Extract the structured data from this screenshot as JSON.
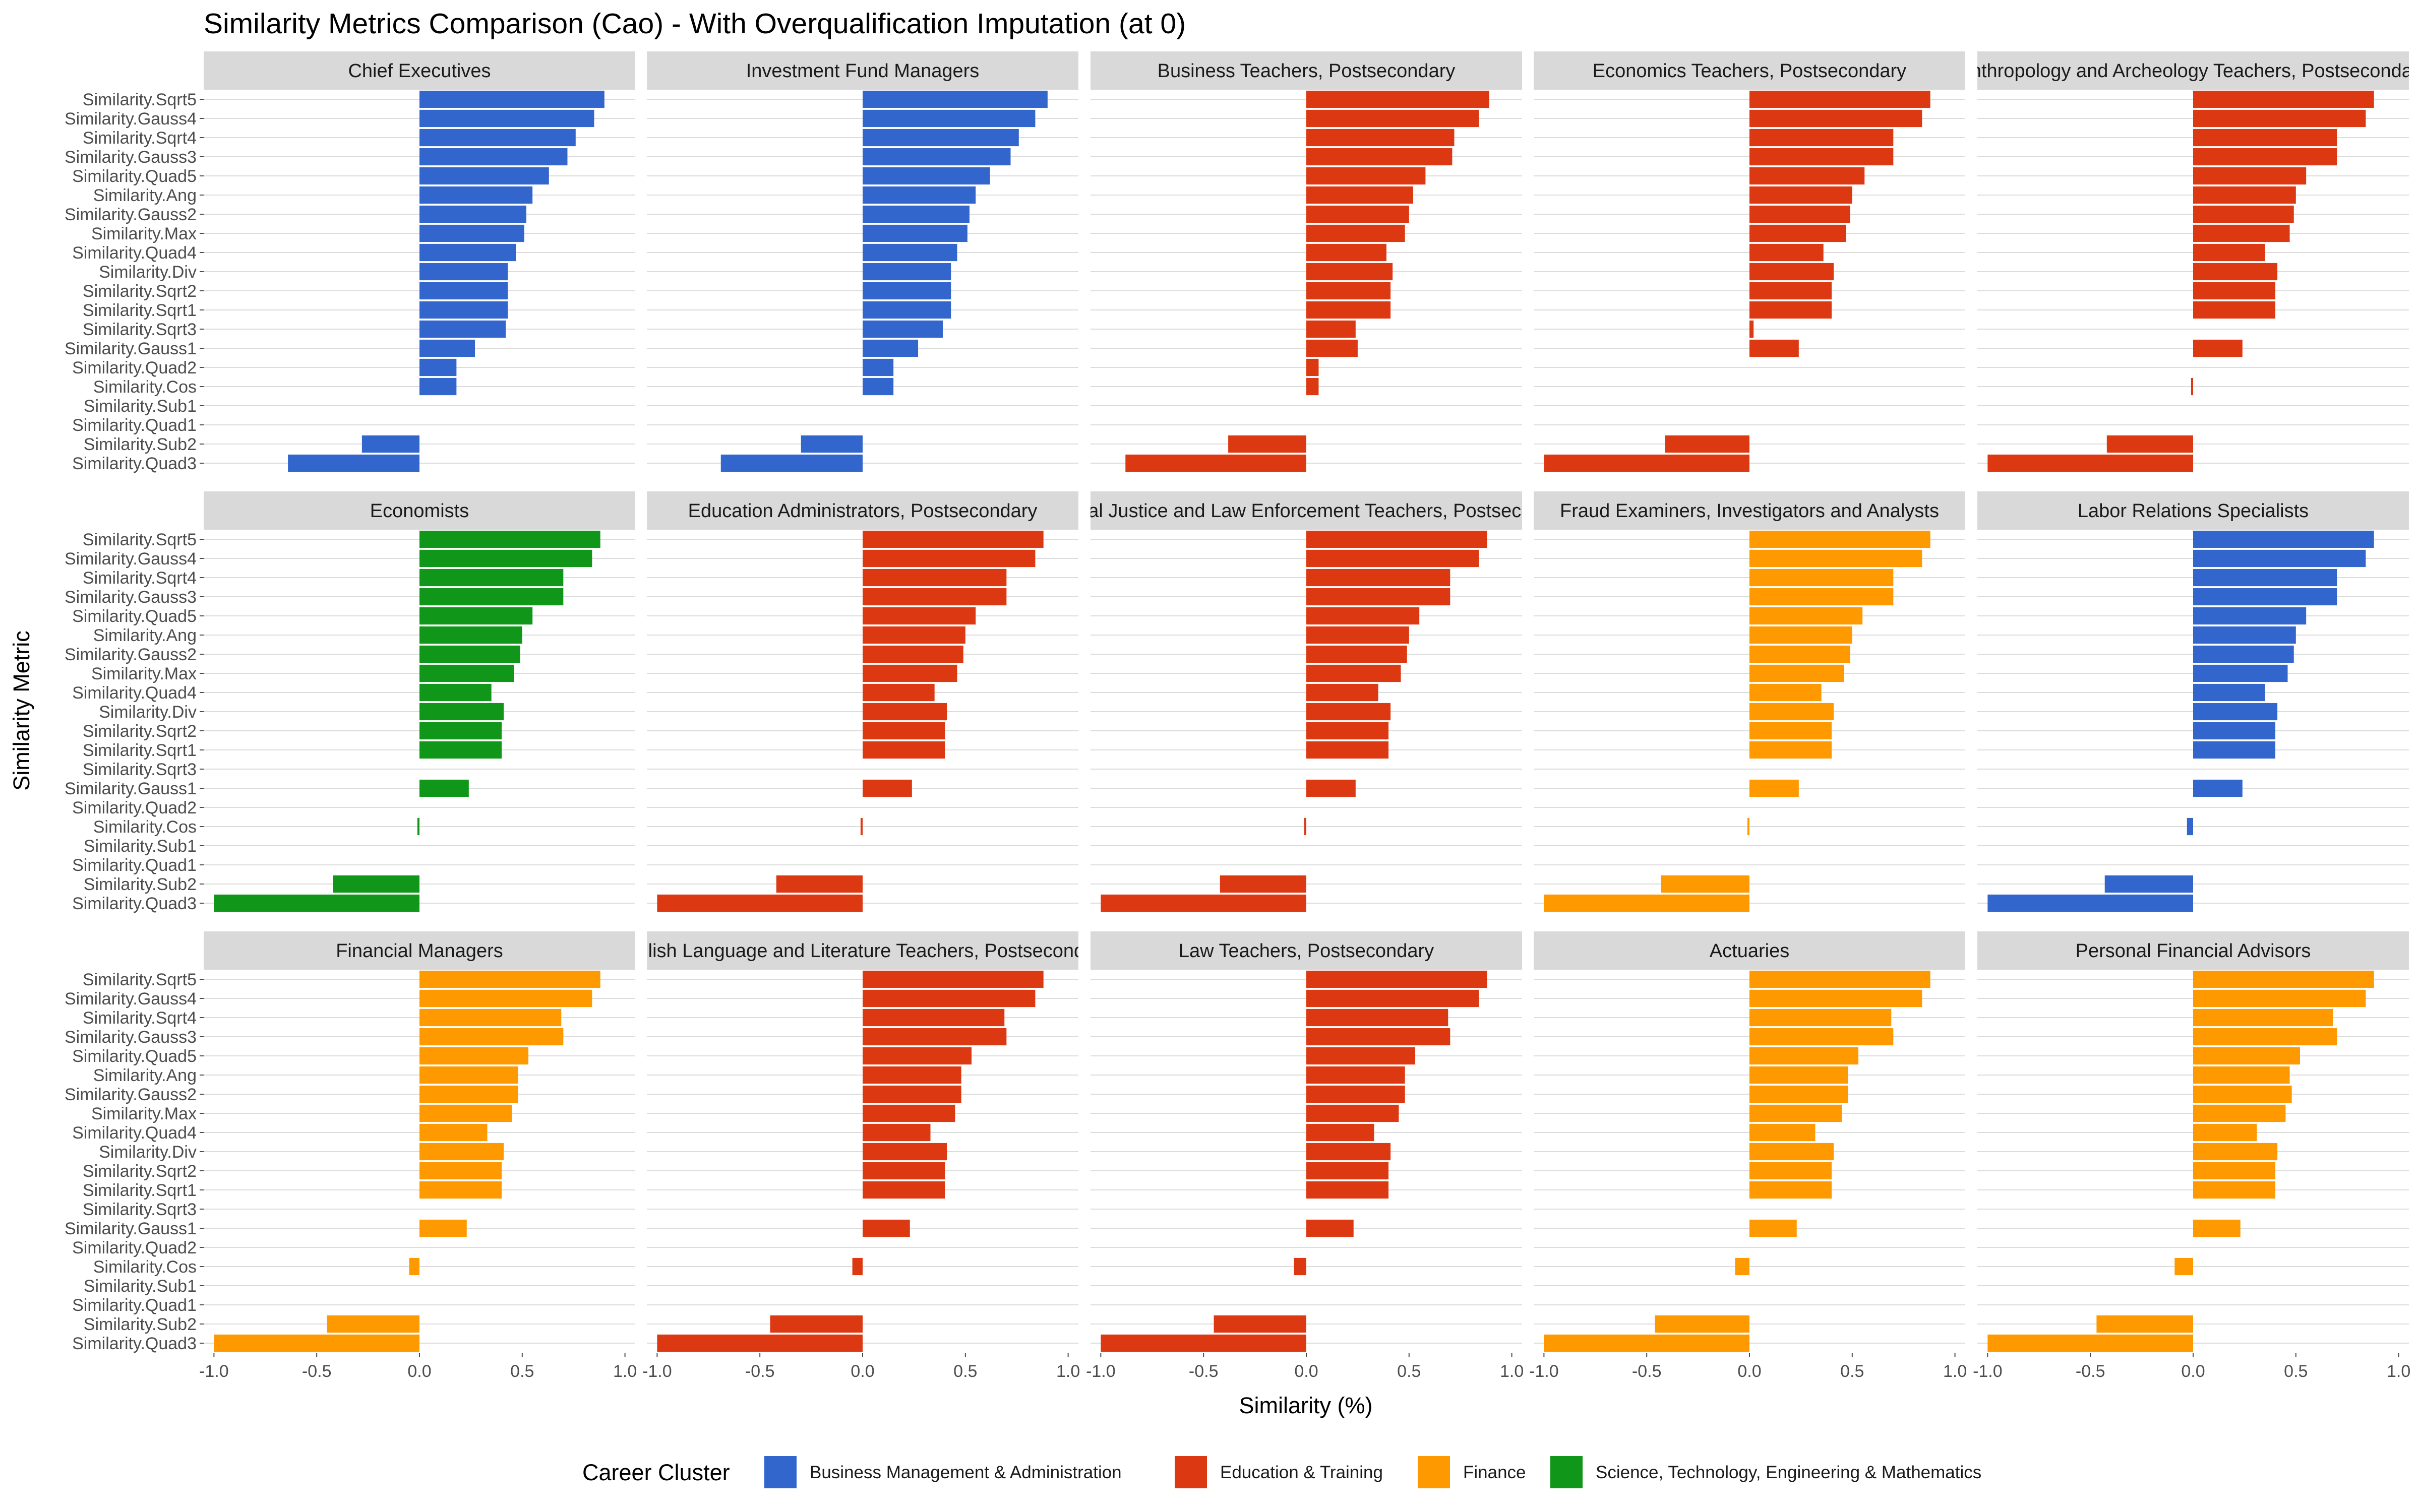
{
  "chart_data": {
    "type": "bar",
    "orientation": "horizontal",
    "title": "Similarity Metrics Comparison (Cao) - With Overqualification Imputation (at 0)",
    "xlabel": "Similarity (%)",
    "ylabel": "Similarity Metric",
    "xlim": [
      -1.05,
      1.05
    ],
    "xticks": [
      "-1.0",
      "-0.5",
      "0.0",
      "0.5",
      "1.0"
    ],
    "xtick_values": [
      -1.0,
      -0.5,
      0.0,
      0.5,
      1.0
    ],
    "grid": true,
    "legend_position": "bottom",
    "legend_title": "Career Cluster",
    "legend": [
      {
        "name": "Business Management & Administration",
        "color": "#3366CC"
      },
      {
        "name": "Education & Training",
        "color": "#DC3912"
      },
      {
        "name": "Finance",
        "color": "#FF9900"
      },
      {
        "name": "Science, Technology, Engineering & Mathematics",
        "color": "#109618"
      }
    ],
    "categories": [
      "Similarity.Sqrt5",
      "Similarity.Gauss4",
      "Similarity.Sqrt4",
      "Similarity.Gauss3",
      "Similarity.Quad5",
      "Similarity.Ang",
      "Similarity.Gauss2",
      "Similarity.Max",
      "Similarity.Quad4",
      "Similarity.Div",
      "Similarity.Sqrt2",
      "Similarity.Sqrt1",
      "Similarity.Sqrt3",
      "Similarity.Gauss1",
      "Similarity.Quad2",
      "Similarity.Cos",
      "Similarity.Sub1",
      "Similarity.Quad1",
      "Similarity.Sub2",
      "Similarity.Quad3"
    ],
    "panels": [
      {
        "name": "Chief Executives",
        "cluster": 0,
        "values": [
          0.9,
          0.85,
          0.76,
          0.72,
          0.63,
          0.55,
          0.52,
          0.51,
          0.47,
          0.43,
          0.43,
          0.43,
          0.42,
          0.27,
          0.18,
          0.18,
          0,
          0,
          -0.28,
          -0.64
        ]
      },
      {
        "name": "Investment Fund Managers",
        "cluster": 0,
        "values": [
          0.9,
          0.84,
          0.76,
          0.72,
          0.62,
          0.55,
          0.52,
          0.51,
          0.46,
          0.43,
          0.43,
          0.43,
          0.39,
          0.27,
          0.15,
          0.15,
          0,
          0,
          -0.3,
          -0.69
        ]
      },
      {
        "name": "Business Teachers, Postsecondary",
        "cluster": 1,
        "values": [
          0.89,
          0.84,
          0.72,
          0.71,
          0.58,
          0.52,
          0.5,
          0.48,
          0.39,
          0.42,
          0.41,
          0.41,
          0.24,
          0.25,
          0.06,
          0.06,
          0,
          0,
          -0.38,
          -0.88
        ]
      },
      {
        "name": "Economics Teachers, Postsecondary",
        "cluster": 1,
        "values": [
          0.88,
          0.84,
          0.7,
          0.7,
          0.56,
          0.5,
          0.49,
          0.47,
          0.36,
          0.41,
          0.4,
          0.4,
          0.02,
          0.24,
          0,
          0,
          0,
          0,
          -0.41,
          -1.0
        ]
      },
      {
        "name": "Anthropology and Archeology Teachers, Postsecondary",
        "cluster": 1,
        "values": [
          0.88,
          0.84,
          0.7,
          0.7,
          0.55,
          0.5,
          0.49,
          0.47,
          0.35,
          0.41,
          0.4,
          0.4,
          0,
          0.24,
          0,
          -0.01,
          0,
          0,
          -0.42,
          -1.0
        ]
      },
      {
        "name": "Economists",
        "cluster": 3,
        "values": [
          0.88,
          0.84,
          0.7,
          0.7,
          0.55,
          0.5,
          0.49,
          0.46,
          0.35,
          0.41,
          0.4,
          0.4,
          0,
          0.24,
          0,
          -0.01,
          0,
          0,
          -0.42,
          -1.0
        ]
      },
      {
        "name": "Education Administrators, Postsecondary",
        "cluster": 1,
        "values": [
          0.88,
          0.84,
          0.7,
          0.7,
          0.55,
          0.5,
          0.49,
          0.46,
          0.35,
          0.41,
          0.4,
          0.4,
          0,
          0.24,
          0,
          -0.01,
          0,
          0,
          -0.42,
          -1.0
        ]
      },
      {
        "name": "Criminal Justice and Law Enforcement Teachers, Postsecondary",
        "cluster": 1,
        "values": [
          0.88,
          0.84,
          0.7,
          0.7,
          0.55,
          0.5,
          0.49,
          0.46,
          0.35,
          0.41,
          0.4,
          0.4,
          0,
          0.24,
          0,
          -0.01,
          0,
          0,
          -0.42,
          -1.0
        ]
      },
      {
        "name": "Fraud Examiners, Investigators and Analysts",
        "cluster": 2,
        "values": [
          0.88,
          0.84,
          0.7,
          0.7,
          0.55,
          0.5,
          0.49,
          0.46,
          0.35,
          0.41,
          0.4,
          0.4,
          0,
          0.24,
          0,
          -0.01,
          0,
          0,
          -0.43,
          -1.0
        ]
      },
      {
        "name": "Labor Relations Specialists",
        "cluster": 0,
        "values": [
          0.88,
          0.84,
          0.7,
          0.7,
          0.55,
          0.5,
          0.49,
          0.46,
          0.35,
          0.41,
          0.4,
          0.4,
          0,
          0.24,
          0,
          -0.03,
          0,
          0,
          -0.43,
          -1.0
        ]
      },
      {
        "name": "Financial Managers",
        "cluster": 2,
        "values": [
          0.88,
          0.84,
          0.69,
          0.7,
          0.53,
          0.48,
          0.48,
          0.45,
          0.33,
          0.41,
          0.4,
          0.4,
          0,
          0.23,
          0,
          -0.05,
          0,
          0,
          -0.45,
          -1.0
        ]
      },
      {
        "name": "English Language and Literature Teachers, Postsecondary",
        "cluster": 1,
        "values": [
          0.88,
          0.84,
          0.69,
          0.7,
          0.53,
          0.48,
          0.48,
          0.45,
          0.33,
          0.41,
          0.4,
          0.4,
          0,
          0.23,
          0,
          -0.05,
          0,
          0,
          -0.45,
          -1.0
        ]
      },
      {
        "name": "Law Teachers, Postsecondary",
        "cluster": 1,
        "values": [
          0.88,
          0.84,
          0.69,
          0.7,
          0.53,
          0.48,
          0.48,
          0.45,
          0.33,
          0.41,
          0.4,
          0.4,
          0,
          0.23,
          0,
          -0.06,
          0,
          0,
          -0.45,
          -1.0
        ]
      },
      {
        "name": "Actuaries",
        "cluster": 2,
        "values": [
          0.88,
          0.84,
          0.69,
          0.7,
          0.53,
          0.48,
          0.48,
          0.45,
          0.32,
          0.41,
          0.4,
          0.4,
          0,
          0.23,
          0,
          -0.07,
          0,
          0,
          -0.46,
          -1.0
        ]
      },
      {
        "name": "Personal Financial Advisors",
        "cluster": 2,
        "values": [
          0.88,
          0.84,
          0.68,
          0.7,
          0.52,
          0.47,
          0.48,
          0.45,
          0.31,
          0.41,
          0.4,
          0.4,
          0,
          0.23,
          0,
          -0.09,
          0,
          0,
          -0.47,
          -1.0
        ]
      }
    ]
  }
}
